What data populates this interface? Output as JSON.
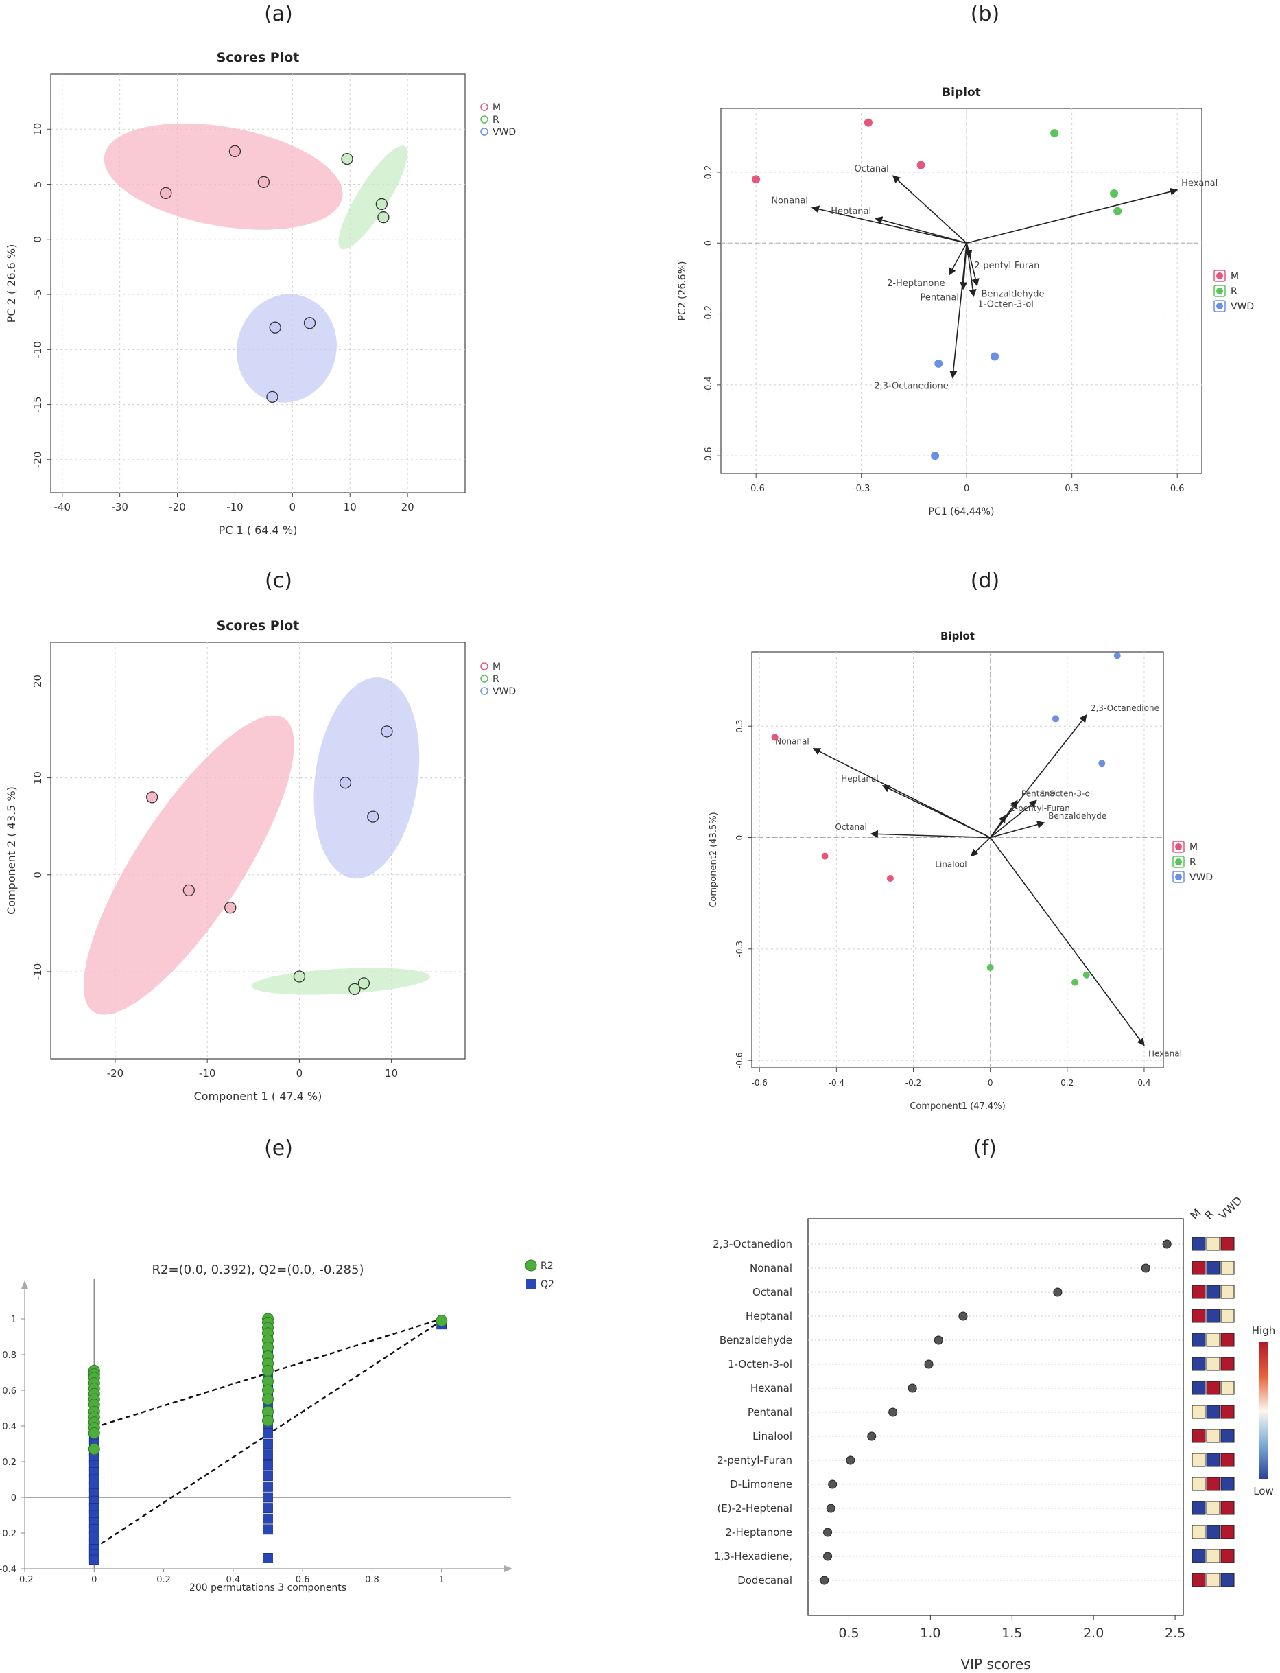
{
  "colors": {
    "M": "#e8557a",
    "R": "#5cc45c",
    "VWD": "#6b8ee6",
    "M_fill": "#f7b8c6",
    "R_fill": "#c8ecc4",
    "VWD_fill": "#c5ccf6",
    "r2": "#4caf3c",
    "q2": "#2a47b8",
    "grid": "#d0d0d0",
    "axis": "#333333",
    "heat_high": "#b2182b",
    "heat_mid": "#f7e9bf",
    "heat_low": "#2c3f9a"
  },
  "panel_labels": {
    "a": "(a)",
    "b": "(b)",
    "c": "(c)",
    "d": "(d)",
    "e": "(e)",
    "f": "(f)"
  },
  "chart_data": [
    {
      "id": "a",
      "type": "scatter",
      "title": "Scores Plot",
      "xlabel": "PC 1 ( 64.4 %)",
      "ylabel": "PC 2 ( 26.6 %)",
      "xlim": [
        -42,
        30
      ],
      "ylim": [
        -23,
        15
      ],
      "xticks": [
        -40,
        -30,
        -20,
        -10,
        0,
        10,
        20
      ],
      "yticks": [
        10,
        5,
        0,
        -5,
        -10,
        -15,
        -20
      ],
      "legend": [
        "M",
        "R",
        "VWD"
      ],
      "legend_position": "right",
      "series": [
        {
          "name": "M",
          "points": [
            [
              -22,
              4.2
            ],
            [
              -10,
              8
            ],
            [
              -5,
              5.2
            ]
          ],
          "ellipse": {
            "cx": -12,
            "cy": 5.7,
            "rx": 21,
            "ry": 4.5,
            "angle_deg": 10
          }
        },
        {
          "name": "R",
          "points": [
            [
              9.5,
              7.3
            ],
            [
              15.5,
              3.2
            ],
            [
              15.8,
              2
            ]
          ],
          "ellipse": {
            "cx": 14,
            "cy": 3.8,
            "rx": 10.5,
            "ry": 1.4,
            "angle_deg": -58
          }
        },
        {
          "name": "VWD",
          "points": [
            [
              -3,
              -8
            ],
            [
              3,
              -7.6
            ],
            [
              -3.5,
              -14.3
            ]
          ],
          "ellipse": {
            "cx": -1,
            "cy": -9.9,
            "rx": 9.5,
            "ry": 4.5,
            "angle_deg": -72
          }
        }
      ]
    },
    {
      "id": "b",
      "type": "biplot",
      "title": "Biplot",
      "xlabel": "PC1 (64.44%)",
      "ylabel": "PC2 (26.6%)",
      "xlim": [
        -0.7,
        0.67
      ],
      "ylim": [
        -0.65,
        0.38
      ],
      "xticks": [
        -0.6,
        -0.3,
        0.0,
        0.3,
        0.6
      ],
      "yticks": [
        0.2,
        0.0,
        -0.2,
        -0.4,
        -0.6
      ],
      "legend": [
        "M",
        "R",
        "VWD"
      ],
      "legend_position": "right",
      "series": [
        {
          "name": "M",
          "points": [
            [
              -0.6,
              0.18
            ],
            [
              -0.28,
              0.34
            ],
            [
              -0.13,
              0.22
            ]
          ]
        },
        {
          "name": "R",
          "points": [
            [
              0.25,
              0.31
            ],
            [
              0.42,
              0.14
            ],
            [
              0.43,
              0.09
            ]
          ]
        },
        {
          "name": "VWD",
          "points": [
            [
              -0.08,
              -0.34
            ],
            [
              0.08,
              -0.32
            ],
            [
              -0.09,
              -0.6
            ]
          ]
        }
      ],
      "loadings": [
        {
          "label": "Hexanal",
          "x": 0.6,
          "y": 0.15
        },
        {
          "label": "Octanal",
          "x": -0.21,
          "y": 0.19
        },
        {
          "label": "Nonanal",
          "x": -0.44,
          "y": 0.1
        },
        {
          "label": "Heptanal",
          "x": -0.26,
          "y": 0.07
        },
        {
          "label": "2-pentyl-Furan",
          "x": 0.01,
          "y": -0.04
        },
        {
          "label": "2-Heptanone",
          "x": -0.05,
          "y": -0.09
        },
        {
          "label": "Benzaldehyde",
          "x": 0.03,
          "y": -0.12
        },
        {
          "label": "Pentanal",
          "x": -0.01,
          "y": -0.13
        },
        {
          "label": "1-Octen-3-ol",
          "x": 0.02,
          "y": -0.15
        },
        {
          "label": "2,3-Octanedione",
          "x": -0.04,
          "y": -0.38
        }
      ]
    },
    {
      "id": "c",
      "type": "scatter",
      "title": "Scores Plot",
      "xlabel": "Component 1 ( 47.4 %)",
      "ylabel": "Component 2 ( 43.5 %)",
      "xlim": [
        -27,
        18
      ],
      "ylim": [
        -19,
        24
      ],
      "xticks": [
        -20,
        -10,
        0,
        10
      ],
      "yticks": [
        20,
        10,
        0,
        -10
      ],
      "legend": [
        "M",
        "R",
        "VWD"
      ],
      "legend_position": "right",
      "series": [
        {
          "name": "M",
          "points": [
            [
              -16,
              8
            ],
            [
              -12,
              -1.6
            ],
            [
              -7.5,
              -3.4
            ]
          ],
          "ellipse": {
            "cx": -12,
            "cy": 1,
            "rx": 19,
            "ry": 5.5,
            "angle_deg": -57
          }
        },
        {
          "name": "R",
          "points": [
            [
              0,
              -10.5
            ],
            [
              6,
              -11.8
            ],
            [
              7,
              -11.2
            ]
          ],
          "ellipse": {
            "cx": 4.5,
            "cy": -11,
            "rx": 9.7,
            "ry": 1.3,
            "angle_deg": -3
          }
        },
        {
          "name": "VWD",
          "points": [
            [
              9.5,
              14.8
            ],
            [
              5,
              9.5
            ],
            [
              8,
              6
            ]
          ],
          "ellipse": {
            "cx": 7.3,
            "cy": 10,
            "rx": 11,
            "ry": 5.3,
            "angle_deg": -82
          }
        }
      ]
    },
    {
      "id": "d",
      "type": "biplot",
      "title": "Biplot",
      "xlabel": "Component1 (47.4%)",
      "ylabel": "Component2 (43.5%)",
      "xlim": [
        -0.62,
        0.45
      ],
      "ylim": [
        -0.62,
        0.5
      ],
      "xticks": [
        -0.6,
        -0.4,
        -0.2,
        0.0,
        0.2,
        0.4
      ],
      "yticks": [
        0.3,
        0.0,
        -0.3,
        -0.6
      ],
      "legend": [
        "M",
        "R",
        "VWD"
      ],
      "legend_position": "right",
      "series": [
        {
          "name": "M",
          "points": [
            [
              -0.56,
              0.27
            ],
            [
              -0.43,
              -0.05
            ],
            [
              -0.26,
              -0.11
            ]
          ]
        },
        {
          "name": "R",
          "points": [
            [
              0,
              -0.35
            ],
            [
              0.22,
              -0.39
            ],
            [
              0.25,
              -0.37
            ]
          ]
        },
        {
          "name": "VWD",
          "points": [
            [
              0.33,
              0.49
            ],
            [
              0.17,
              0.32
            ],
            [
              0.29,
              0.2
            ]
          ]
        }
      ],
      "loadings": [
        {
          "label": "2,3-Octanedione",
          "x": 0.25,
          "y": 0.33
        },
        {
          "label": "Nonanal",
          "x": -0.46,
          "y": 0.24
        },
        {
          "label": "Heptanal",
          "x": -0.28,
          "y": 0.14
        },
        {
          "label": "Pentanal",
          "x": 0.07,
          "y": 0.1
        },
        {
          "label": "1-Octen-3-ol",
          "x": 0.12,
          "y": 0.1
        },
        {
          "label": "2-pentyl-Furan",
          "x": 0.04,
          "y": 0.06
        },
        {
          "label": "Benzaldehyde",
          "x": 0.14,
          "y": 0.04
        },
        {
          "label": "Octanal",
          "x": -0.31,
          "y": 0.01
        },
        {
          "label": "Linalool",
          "x": -0.05,
          "y": -0.05
        },
        {
          "label": "Hexanal",
          "x": 0.4,
          "y": -0.56
        }
      ]
    },
    {
      "id": "e",
      "type": "scatter",
      "title": "R2=(0.0, 0.392), Q2=(0.0, -0.285)",
      "xlabel": "200 permutations 3 components",
      "ylabel": "",
      "xlim": [
        -0.2,
        1.2
      ],
      "ylim": [
        -0.4,
        1.2
      ],
      "xticks": [
        -0.2,
        0,
        0.2,
        0.4,
        0.6,
        0.8,
        1
      ],
      "xtick_labels": [
        "-0.2",
        "0",
        "0.2",
        "0.4",
        "0.6",
        "0.8",
        "1"
      ],
      "yticks": [
        1,
        0.8,
        0.6,
        0.4,
        0.2,
        0,
        -0.2,
        -0.4
      ],
      "ytick_labels": [
        "1",
        "0.8",
        "0.6",
        "0.4",
        "0.2",
        "0",
        "-0.2",
        "-0.4"
      ],
      "legend": [
        "R2",
        "Q2"
      ],
      "legend_position": "right",
      "series": [
        {
          "name": "R2",
          "x": [
            0,
            0,
            0,
            0,
            0,
            0,
            0,
            0,
            0,
            0,
            0,
            0,
            0,
            0,
            0.5,
            0.5,
            0.5,
            0.5,
            0.5,
            0.5,
            0.5,
            0.5,
            0.5,
            0.5,
            0.5,
            0.5,
            0.5,
            0.5,
            1
          ],
          "y": [
            0.71,
            0.69,
            0.67,
            0.64,
            0.61,
            0.58,
            0.55,
            0.52,
            0.48,
            0.45,
            0.42,
            0.39,
            0.36,
            0.27,
            1.0,
            0.98,
            0.95,
            0.92,
            0.88,
            0.84,
            0.79,
            0.75,
            0.71,
            0.65,
            0.6,
            0.55,
            0.48,
            0.43,
            0.99
          ]
        },
        {
          "name": "Q2",
          "x": [
            0,
            0,
            0,
            0,
            0,
            0,
            0,
            0,
            0,
            0,
            0,
            0,
            0,
            0,
            0,
            0,
            0,
            0,
            0,
            0,
            0.5,
            0.5,
            0.5,
            0.5,
            0.5,
            0.5,
            0.5,
            0.5,
            0.5,
            0.5,
            0.5,
            0.5,
            0.5,
            0.5,
            0.5,
            0.5,
            0.5,
            0.5,
            0.5,
            0.5,
            0.5,
            0.5,
            0.5,
            0.5,
            1
          ],
          "y": [
            0.39,
            0.34,
            0.3,
            0.26,
            0.22,
            0.18,
            0.14,
            0.1,
            0.06,
            0.02,
            -0.02,
            -0.06,
            -0.1,
            -0.14,
            -0.18,
            -0.22,
            -0.26,
            -0.29,
            -0.32,
            -0.35,
            0.88,
            0.84,
            0.8,
            0.76,
            0.72,
            0.68,
            0.64,
            0.6,
            0.56,
            0.52,
            0.48,
            0.44,
            0.4,
            0.36,
            0.3,
            0.24,
            0.18,
            0.12,
            0.06,
            0.0,
            -0.06,
            -0.12,
            -0.18,
            -0.34,
            0.97
          ]
        }
      ],
      "regression_lines": [
        {
          "name": "R2",
          "from": [
            0,
            0.392
          ],
          "to": [
            1,
            1.0
          ]
        },
        {
          "name": "Q2",
          "from": [
            0,
            -0.285
          ],
          "to": [
            1,
            0.99
          ]
        }
      ]
    },
    {
      "id": "f",
      "type": "dot",
      "title": "",
      "xlabel": "VIP scores",
      "ylabel": "",
      "xlim": [
        0.25,
        2.55
      ],
      "xticks": [
        0.5,
        1.0,
        1.5,
        2.0,
        2.5
      ],
      "xtick_labels": [
        "0.5",
        "1.0",
        "1.5",
        "2.0",
        "2.5"
      ],
      "heatmap_columns": [
        "M",
        "R",
        "VWD"
      ],
      "colorbar": {
        "high": "High",
        "low": "Low"
      },
      "features": [
        {
          "label": "2,3-Octanedion",
          "vip": 2.45,
          "heat": [
            "low",
            "mid",
            "high"
          ]
        },
        {
          "label": "Nonanal",
          "vip": 2.32,
          "heat": [
            "high",
            "low",
            "mid"
          ]
        },
        {
          "label": "Octanal",
          "vip": 1.78,
          "heat": [
            "high",
            "low",
            "mid"
          ]
        },
        {
          "label": "Heptanal",
          "vip": 1.2,
          "heat": [
            "high",
            "low",
            "mid"
          ]
        },
        {
          "label": "Benzaldehyde",
          "vip": 1.05,
          "heat": [
            "low",
            "mid",
            "high"
          ]
        },
        {
          "label": "1-Octen-3-ol",
          "vip": 0.99,
          "heat": [
            "low",
            "mid",
            "high"
          ]
        },
        {
          "label": "Hexanal",
          "vip": 0.89,
          "heat": [
            "low",
            "high",
            "mid"
          ]
        },
        {
          "label": "Pentanal",
          "vip": 0.77,
          "heat": [
            "mid",
            "low",
            "high"
          ]
        },
        {
          "label": "Linalool",
          "vip": 0.64,
          "heat": [
            "high",
            "mid",
            "low"
          ]
        },
        {
          "label": "2-pentyl-Furan",
          "vip": 0.51,
          "heat": [
            "mid",
            "low",
            "high"
          ]
        },
        {
          "label": "D-Limonene",
          "vip": 0.4,
          "heat": [
            "mid",
            "high",
            "low"
          ]
        },
        {
          "label": "(E)-2-Heptenal",
          "vip": 0.39,
          "heat": [
            "low",
            "mid",
            "high"
          ]
        },
        {
          "label": "2-Heptanone",
          "vip": 0.37,
          "heat": [
            "mid",
            "low",
            "high"
          ]
        },
        {
          "label": "1,3-Hexadiene,",
          "vip": 0.37,
          "heat": [
            "low",
            "mid",
            "high"
          ]
        },
        {
          "label": "Dodecanal",
          "vip": 0.35,
          "heat": [
            "high",
            "mid",
            "low"
          ]
        }
      ]
    }
  ]
}
